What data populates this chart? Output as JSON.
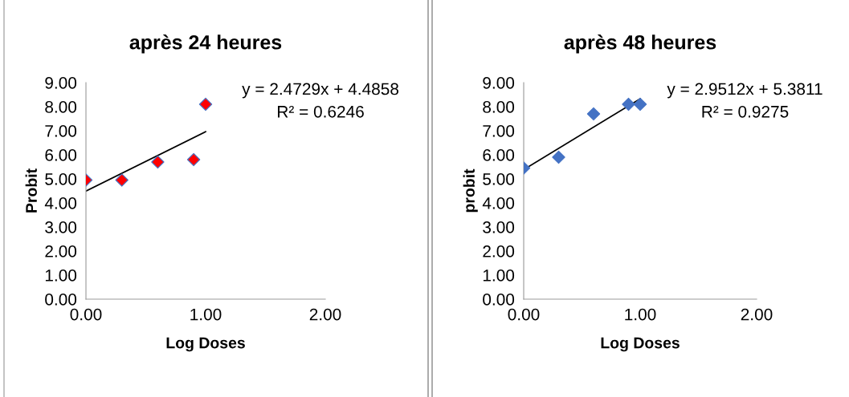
{
  "chart_data": [
    {
      "type": "scatter",
      "title": "après 24 heures",
      "xlabel": "Log Doses",
      "ylabel": "Probit",
      "grid": false,
      "xlim": [
        0,
        2
      ],
      "xticks": [
        {
          "value": 0,
          "label": "0.00"
        },
        {
          "value": 1,
          "label": "1.00"
        },
        {
          "value": 2,
          "label": "2.00"
        }
      ],
      "ylim": [
        0,
        9
      ],
      "yticks": [
        {
          "value": 0,
          "label": "0.00"
        },
        {
          "value": 1,
          "label": "1.00"
        },
        {
          "value": 2,
          "label": "2.00"
        },
        {
          "value": 3,
          "label": "3.00"
        },
        {
          "value": 4,
          "label": "4.00"
        },
        {
          "value": 5,
          "label": "5.00"
        },
        {
          "value": 6,
          "label": "6.00"
        },
        {
          "value": 7,
          "label": "7.00"
        },
        {
          "value": 8,
          "label": "8.00"
        },
        {
          "value": 9,
          "label": "9.00"
        }
      ],
      "annotations": [
        "y = 2.4729x + 4.4858",
        "R² = 0.6246"
      ],
      "series": [
        {
          "color": "#ff0000",
          "marker": "diamond",
          "x": [
            0,
            0.3,
            0.6,
            0.9,
            1.0
          ],
          "values": [
            4.95,
            4.95,
            5.7,
            5.8,
            8.1
          ]
        },
        {
          "type": "line",
          "color": "#000000",
          "x": [
            0,
            1.0
          ],
          "values": [
            4.49,
            6.96
          ]
        }
      ]
    },
    {
      "type": "scatter",
      "title": "après 48 heures",
      "xlabel": "Log Doses",
      "ylabel": "probit",
      "grid": false,
      "xlim": [
        0,
        2
      ],
      "xticks": [
        {
          "value": 0,
          "label": "0.00"
        },
        {
          "value": 1,
          "label": "1.00"
        },
        {
          "value": 2,
          "label": "2.00"
        }
      ],
      "ylim": [
        0,
        9
      ],
      "yticks": [
        {
          "value": 0,
          "label": "0.00"
        },
        {
          "value": 1,
          "label": "1.00"
        },
        {
          "value": 2,
          "label": "2.00"
        },
        {
          "value": 3,
          "label": "3.00"
        },
        {
          "value": 4,
          "label": "4.00"
        },
        {
          "value": 5,
          "label": "5.00"
        },
        {
          "value": 6,
          "label": "6.00"
        },
        {
          "value": 7,
          "label": "7.00"
        },
        {
          "value": 8,
          "label": "8.00"
        },
        {
          "value": 9,
          "label": "9.00"
        }
      ],
      "annotations": [
        "y = 2.9512x + 5.3811",
        "R² = 0.9275"
      ],
      "series": [
        {
          "color": "#4472c4",
          "marker": "diamond",
          "x": [
            0,
            0.3,
            0.6,
            0.9,
            1.0
          ],
          "values": [
            5.45,
            5.9,
            7.7,
            8.1,
            8.1
          ]
        },
        {
          "type": "line",
          "color": "#000000",
          "x": [
            0,
            1.0
          ],
          "values": [
            5.38,
            8.33
          ]
        }
      ]
    }
  ]
}
